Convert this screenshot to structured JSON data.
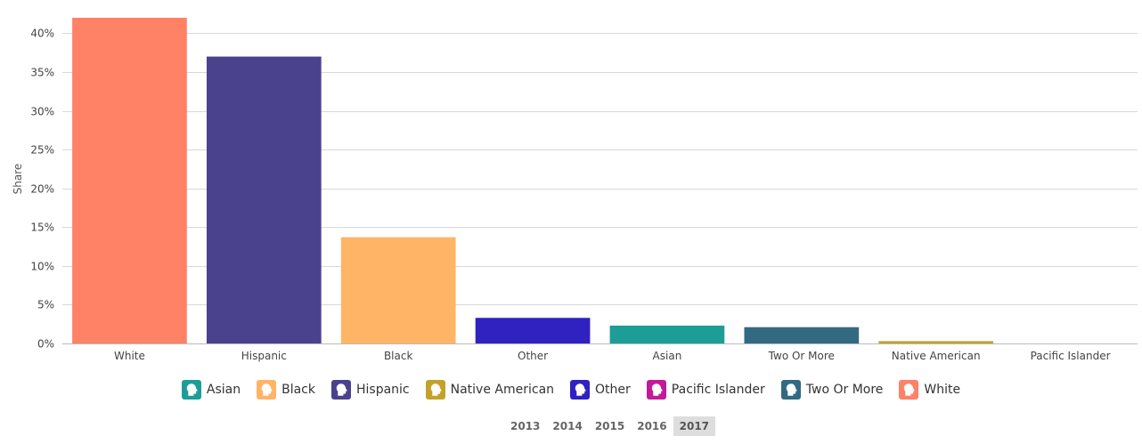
{
  "chart_data": {
    "type": "bar",
    "categories": [
      "White",
      "Hispanic",
      "Black",
      "Other",
      "Asian",
      "Two Or More",
      "Native American",
      "Pacific Islander"
    ],
    "values": [
      42.0,
      37.0,
      13.7,
      3.3,
      2.3,
      2.1,
      0.3,
      0.0
    ],
    "colors": [
      "#FF8166",
      "#4B428E",
      "#FFB466",
      "#2F22C1",
      "#1C9E97",
      "#336A81",
      "#C4A12A",
      "#C21A99"
    ],
    "ylabel": "Share",
    "xlabel": "",
    "ylim": [
      0,
      42
    ],
    "y_ticks": [
      0,
      5,
      10,
      15,
      20,
      25,
      30,
      35,
      40
    ],
    "y_tick_labels": [
      "0%",
      "5%",
      "10%",
      "15%",
      "20%",
      "25%",
      "30%",
      "35%",
      "40%"
    ],
    "grid": true
  },
  "legend": [
    {
      "label": "Asian",
      "color": "#1C9E97",
      "icon": "person-head-icon"
    },
    {
      "label": "Black",
      "color": "#FFB466",
      "icon": "person-head-icon"
    },
    {
      "label": "Hispanic",
      "color": "#4B428E",
      "icon": "person-head-icon"
    },
    {
      "label": "Native American",
      "color": "#C4A12A",
      "icon": "person-head-icon"
    },
    {
      "label": "Other",
      "color": "#2F22C1",
      "icon": "person-head-icon"
    },
    {
      "label": "Pacific Islander",
      "color": "#C21A99",
      "icon": "person-head-icon"
    },
    {
      "label": "Two Or More",
      "color": "#336A81",
      "icon": "person-head-icon"
    },
    {
      "label": "White",
      "color": "#FF8166",
      "icon": "person-head-icon"
    }
  ],
  "years": {
    "options": [
      "2013",
      "2014",
      "2015",
      "2016",
      "2017"
    ],
    "selected": "2017"
  }
}
